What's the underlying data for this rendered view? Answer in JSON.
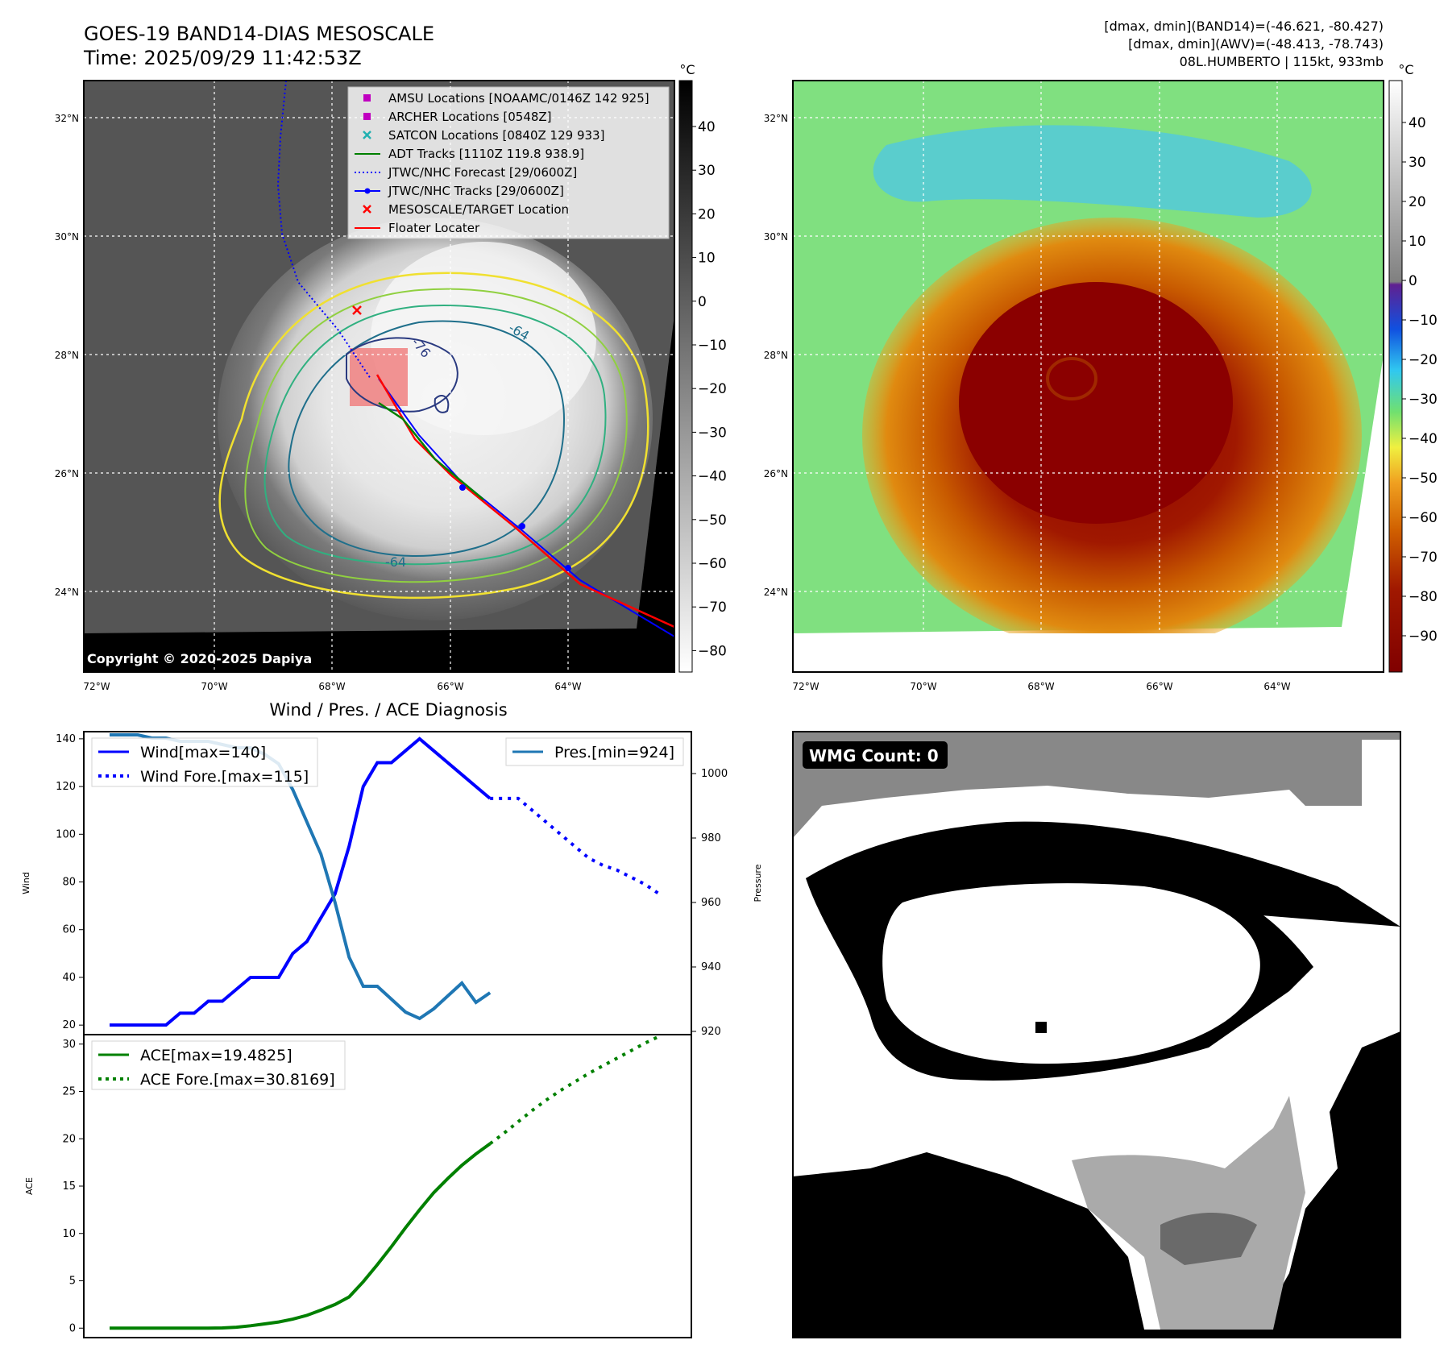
{
  "header": {
    "title_line1": "GOES-19 BAND14-DIAS MESOSCALE",
    "title_line2": "Time: 2025/09/29 11:42:53Z",
    "info_line1": "[dmax, dmin](BAND14)=(-46.621, -80.427)",
    "info_line2": "[dmax, dmin](AWV)=(-48.413, -78.743)",
    "info_line3": "08L.HUMBERTO | 115kt, 933mb"
  },
  "maps": {
    "lat_labels": [
      "32°N",
      "30°N",
      "28°N",
      "26°N",
      "24°N"
    ],
    "lon_labels": [
      "72°W",
      "70°W",
      "68°W",
      "66°W",
      "64°W"
    ],
    "copyright": "Copyright © 2020-2025 Dapiya",
    "contour_labels": [
      "-76",
      "-64",
      "-64"
    ],
    "legend": [
      {
        "label": "AMSU Locations [NOAAMC/0146Z 142 925]",
        "color": "#c000c0",
        "marker": "square"
      },
      {
        "label": "ARCHER Locations [0548Z]",
        "color": "#c000c0",
        "marker": "square"
      },
      {
        "label": "SATCON Locations [0840Z 129 933]",
        "color": "#20b0b0",
        "marker": "x"
      },
      {
        "label": "ADT Tracks [1110Z 119.8 938.9]",
        "color": "#008000",
        "marker": "line"
      },
      {
        "label": "JTWC/NHC Forecast [29/0600Z]",
        "color": "#0000ff",
        "marker": "dotted"
      },
      {
        "label": "JTWC/NHC Tracks [29/0600Z]",
        "color": "#0000ff",
        "marker": "line-dot"
      },
      {
        "label": "MESOSCALE/TARGET Location",
        "color": "#ff0000",
        "marker": "x"
      },
      {
        "label": "Floater Locater",
        "color": "#ff0000",
        "marker": "line"
      }
    ],
    "colorbar_unit": "°C",
    "gray_colorbar_ticks": [
      "40",
      "30",
      "20",
      "10",
      "0",
      "−10",
      "−20",
      "−30",
      "−40",
      "−50",
      "−60",
      "−70",
      "−80"
    ],
    "color_colorbar_ticks": [
      "40",
      "30",
      "20",
      "10",
      "0",
      "−10",
      "−20",
      "−30",
      "−40",
      "−50",
      "−60",
      "−70",
      "−80",
      "−90"
    ]
  },
  "chart_data": [
    {
      "type": "line",
      "title": "Wind / Pres. / ACE Diagnosis",
      "ylabel": "Wind",
      "y2label": "Pressure",
      "ylim": [
        16,
        143
      ],
      "y2lim": [
        919,
        1013
      ],
      "yticks": [
        "140",
        "120",
        "100",
        "80",
        "60",
        "40",
        "20"
      ],
      "y2ticks": [
        "1000",
        "980",
        "960",
        "940",
        "920"
      ],
      "x": [
        0,
        1,
        2,
        3,
        4,
        5,
        6,
        7,
        8,
        9,
        10,
        11,
        12,
        13,
        14,
        15,
        16,
        17,
        18,
        19,
        20,
        21,
        22,
        23,
        24,
        25,
        26,
        27,
        28,
        29,
        30,
        31,
        32,
        33,
        34,
        35,
        36,
        37,
        38,
        39
      ],
      "series": [
        {
          "name": "Wind[max=140]",
          "color": "#0000ff",
          "style": "solid",
          "x": [
            0,
            1,
            2,
            3,
            4,
            5,
            6,
            7,
            8,
            9,
            10,
            11,
            12,
            13,
            14,
            15,
            16,
            17,
            18,
            19,
            20,
            21,
            22,
            23,
            24,
            25,
            26,
            27
          ],
          "values": [
            20,
            20,
            20,
            20,
            20,
            25,
            25,
            30,
            30,
            35,
            40,
            40,
            40,
            50,
            55,
            65,
            75,
            95,
            120,
            130,
            130,
            135,
            140,
            135,
            130,
            125,
            120,
            115
          ]
        },
        {
          "name": "Wind Fore.[max=115]",
          "color": "#0000ff",
          "style": "dotted",
          "x": [
            27,
            28,
            29,
            30,
            31,
            32,
            33,
            34,
            35,
            36,
            37,
            38,
            39
          ],
          "values": [
            115,
            115,
            115,
            110,
            105,
            100,
            95,
            90,
            87,
            85,
            82,
            79,
            75
          ]
        },
        {
          "name": "Pres.[min=924]",
          "color": "#1f77b4",
          "style": "solid",
          "axis": "right",
          "x": [
            0,
            1,
            2,
            3,
            4,
            5,
            6,
            7,
            8,
            9,
            10,
            11,
            12,
            13,
            14,
            15,
            16,
            17,
            18,
            19,
            20,
            21,
            22,
            23,
            24,
            25,
            26,
            27
          ],
          "values": [
            1012,
            1012,
            1012,
            1011,
            1011,
            1010,
            1010,
            1010,
            1009,
            1008,
            1008,
            1006,
            1003,
            995,
            985,
            975,
            960,
            943,
            934,
            934,
            930,
            926,
            924,
            927,
            931,
            935,
            929,
            932
          ]
        }
      ]
    },
    {
      "type": "line",
      "ylabel": "ACE",
      "ylim": [
        -1,
        31
      ],
      "yticks": [
        "30",
        "25",
        "20",
        "15",
        "10",
        "5",
        "0"
      ],
      "series": [
        {
          "name": "ACE[max=19.4825]",
          "color": "#008000",
          "style": "solid",
          "x": [
            0,
            1,
            2,
            3,
            4,
            5,
            6,
            7,
            8,
            9,
            10,
            11,
            12,
            13,
            14,
            15,
            16,
            17,
            18,
            19,
            20,
            21,
            22,
            23,
            24,
            25,
            26,
            27
          ],
          "values": [
            0,
            0,
            0,
            0,
            0,
            0,
            0,
            0,
            0.02,
            0.1,
            0.25,
            0.45,
            0.65,
            0.95,
            1.35,
            1.9,
            2.5,
            3.3,
            4.9,
            6.7,
            8.6,
            10.6,
            12.5,
            14.3,
            15.8,
            17.2,
            18.4,
            19.4825
          ]
        },
        {
          "name": "ACE Fore.[max=30.8169]",
          "color": "#008000",
          "style": "dotted",
          "x": [
            27,
            28,
            29,
            30,
            31,
            32,
            33,
            34,
            35,
            36,
            37,
            38,
            39
          ],
          "values": [
            19.4825,
            20.6,
            21.8,
            23.0,
            24.1,
            25.1,
            26.0,
            26.9,
            27.7,
            28.5,
            29.3,
            30.1,
            30.8169
          ]
        }
      ]
    }
  ],
  "wmg": {
    "label": "WMG Count: 0"
  }
}
